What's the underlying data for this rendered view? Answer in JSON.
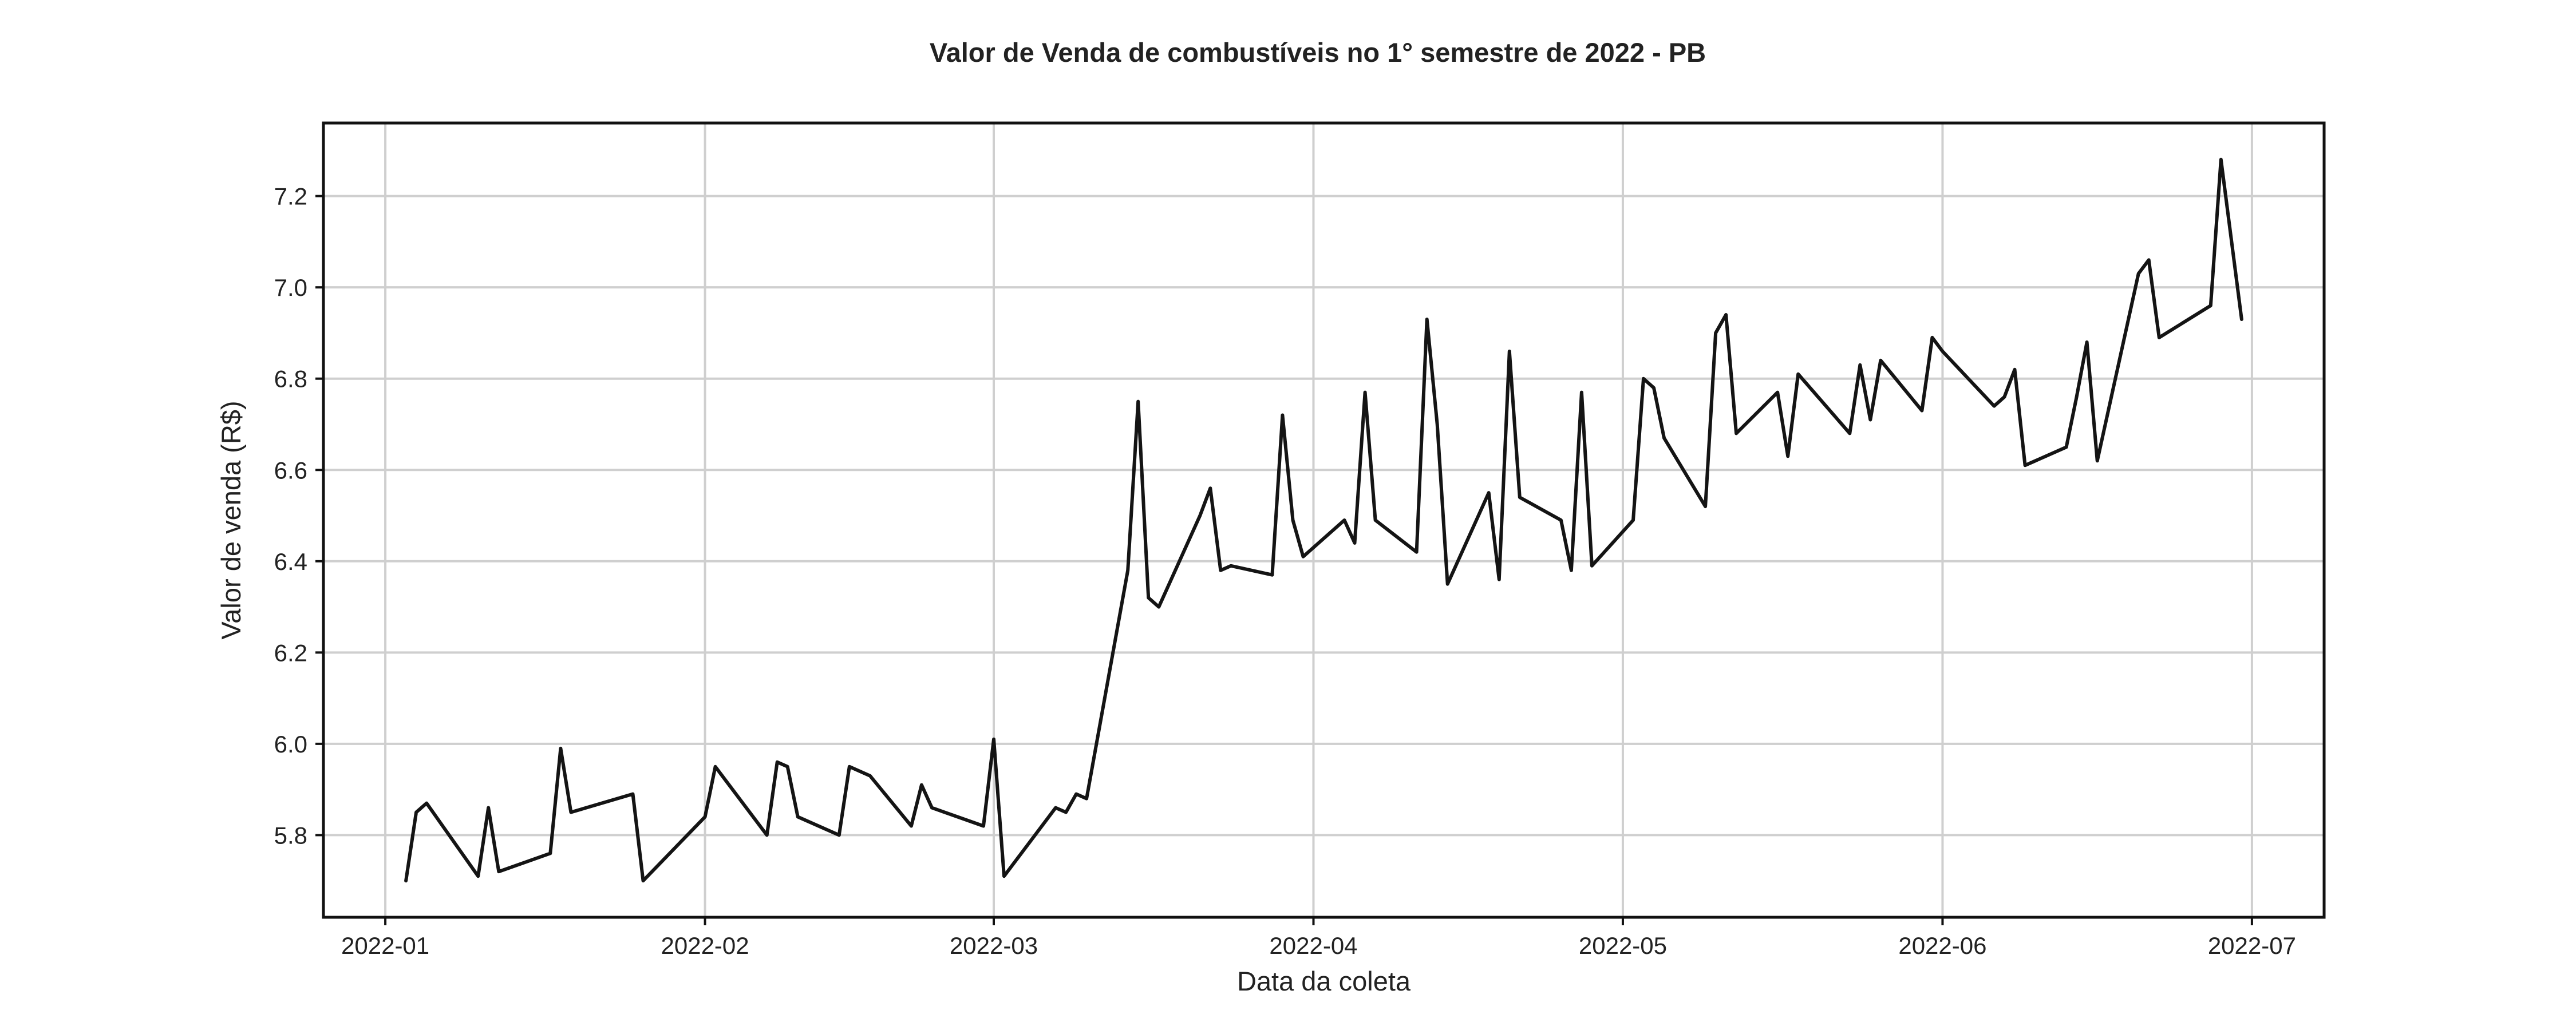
{
  "chart_data": {
    "type": "line",
    "title": "Valor de Venda de combustíveis no 1° semestre de 2022 - PB",
    "xlabel": "Data da coleta",
    "ylabel": "Valor de venda (R$)",
    "x_ticks": [
      "2022-01-01",
      "2022-02-01",
      "2022-03-01",
      "2022-04-01",
      "2022-05-01",
      "2022-06-01",
      "2022-07-01"
    ],
    "x_tick_labels": [
      "2022-01",
      "2022-02",
      "2022-03",
      "2022-04",
      "2022-05",
      "2022-06",
      "2022-07"
    ],
    "y_ticks": [
      5.8,
      6.0,
      6.2,
      6.4,
      6.6,
      6.8,
      7.0,
      7.2
    ],
    "y_tick_labels": [
      "5.8",
      "6.0",
      "6.2",
      "6.4",
      "6.6",
      "6.8",
      "7.0",
      "7.2"
    ],
    "xlim": [
      "2021-12-26",
      "2022-07-08"
    ],
    "ylim": [
      5.62,
      7.36
    ],
    "grid": true,
    "line_color": "#141414",
    "series": [
      {
        "x": [
          "2022-01-03",
          "2022-01-04",
          "2022-01-05",
          "2022-01-10",
          "2022-01-11",
          "2022-01-12",
          "2022-01-17",
          "2022-01-18",
          "2022-01-19",
          "2022-01-25",
          "2022-01-26",
          "2022-02-01",
          "2022-02-02",
          "2022-02-07",
          "2022-02-08",
          "2022-02-09",
          "2022-02-10",
          "2022-02-14",
          "2022-02-15",
          "2022-02-16",
          "2022-02-17",
          "2022-02-21",
          "2022-02-22",
          "2022-02-23",
          "2022-02-28",
          "2022-03-01",
          "2022-03-02",
          "2022-03-07",
          "2022-03-08",
          "2022-03-09",
          "2022-03-10",
          "2022-03-14",
          "2022-03-15",
          "2022-03-16",
          "2022-03-17",
          "2022-03-21",
          "2022-03-22",
          "2022-03-23",
          "2022-03-24",
          "2022-03-28",
          "2022-03-29",
          "2022-03-30",
          "2022-03-31",
          "2022-04-04",
          "2022-04-05",
          "2022-04-06",
          "2022-04-07",
          "2022-04-11",
          "2022-04-12",
          "2022-04-13",
          "2022-04-14",
          "2022-04-18",
          "2022-04-19",
          "2022-04-20",
          "2022-04-21",
          "2022-04-25",
          "2022-04-26",
          "2022-04-27",
          "2022-04-28",
          "2022-05-02",
          "2022-05-03",
          "2022-05-04",
          "2022-05-05",
          "2022-05-09",
          "2022-05-10",
          "2022-05-11",
          "2022-05-12",
          "2022-05-16",
          "2022-05-17",
          "2022-05-18",
          "2022-05-23",
          "2022-05-24",
          "2022-05-25",
          "2022-05-26",
          "2022-05-30",
          "2022-05-31",
          "2022-06-01",
          "2022-06-06",
          "2022-06-07",
          "2022-06-08",
          "2022-06-09",
          "2022-06-13",
          "2022-06-14",
          "2022-06-15",
          "2022-06-16",
          "2022-06-20",
          "2022-06-21",
          "2022-06-22",
          "2022-06-27",
          "2022-06-28",
          "2022-06-30"
        ],
        "y": [
          5.7,
          5.85,
          5.87,
          5.71,
          5.86,
          5.72,
          5.76,
          5.99,
          5.85,
          5.89,
          5.7,
          5.84,
          5.95,
          5.8,
          5.96,
          5.95,
          5.84,
          5.8,
          5.95,
          5.94,
          5.93,
          5.82,
          5.91,
          5.86,
          5.82,
          6.01,
          5.71,
          5.86,
          5.85,
          5.89,
          5.88,
          6.38,
          6.75,
          6.32,
          6.3,
          6.5,
          6.56,
          6.38,
          6.39,
          6.37,
          6.72,
          6.49,
          6.41,
          6.49,
          6.44,
          6.77,
          6.49,
          6.42,
          6.93,
          6.7,
          6.35,
          6.55,
          6.36,
          6.86,
          6.54,
          6.49,
          6.38,
          6.77,
          6.39,
          6.49,
          6.8,
          6.78,
          6.67,
          6.52,
          6.9,
          6.94,
          6.68,
          6.77,
          6.63,
          6.81,
          6.68,
          6.83,
          6.71,
          6.84,
          6.73,
          6.89,
          6.86,
          6.74,
          6.76,
          6.82,
          6.61,
          6.65,
          6.76,
          6.88,
          6.62,
          7.03,
          7.06,
          6.89,
          6.96,
          7.28,
          6.93
        ]
      }
    ]
  }
}
